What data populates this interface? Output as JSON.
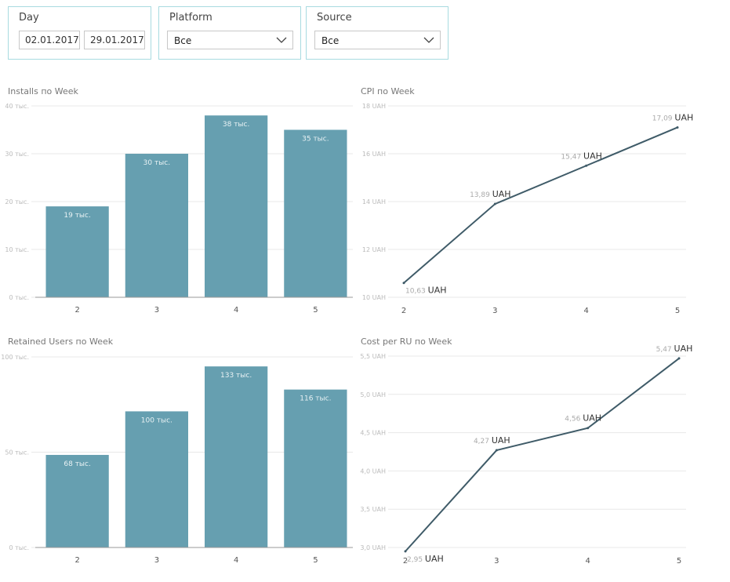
{
  "filters": {
    "day": {
      "title": "Day",
      "start": "02.01.2017",
      "end": "29.01.2017"
    },
    "platform": {
      "title": "Platform",
      "value": "Все"
    },
    "source": {
      "title": "Source",
      "value": "Все"
    }
  },
  "colors": {
    "bar": "#669fb0",
    "line": "#3f5b68",
    "grid": "#e8e8e8",
    "slicer_border": "#a8dbe0"
  },
  "chart_data": [
    {
      "id": "installs",
      "type": "bar",
      "title": "Installs по Week",
      "categories": [
        "2",
        "3",
        "4",
        "5"
      ],
      "values": [
        19,
        30,
        38,
        35
      ],
      "data_labels": [
        "19 тыс.",
        "30 тыс.",
        "38 тыс.",
        "35 тыс."
      ],
      "ylim": [
        0,
        40
      ],
      "yticks": [
        "0 тыс.",
        "10 тыс.",
        "20 тыс.",
        "30 тыс.",
        "40 тыс."
      ],
      "grid": true
    },
    {
      "id": "cpi",
      "type": "line",
      "title": "CPI по Week",
      "categories": [
        "2",
        "3",
        "4",
        "5"
      ],
      "values": [
        10.6,
        13.9,
        15.5,
        17.1
      ],
      "data_labels": [
        "10,63 UAH",
        "13,89 UAH",
        "15,47 UAH",
        "17,09 UAH"
      ],
      "ylim": [
        10,
        18
      ],
      "yticks": [
        "10 UAH",
        "12 UAH",
        "14 UAH",
        "16 UAH",
        "18 UAH"
      ],
      "grid": true
    },
    {
      "id": "retained",
      "type": "bar",
      "title": "Retained Users по Week",
      "categories": [
        "2",
        "3",
        "4",
        "5"
      ],
      "values": [
        68,
        100,
        133,
        116
      ],
      "data_labels": [
        "68 тыс.",
        "100 тыс.",
        "133 тыс.",
        "116 тыс."
      ],
      "ylim": [
        0,
        140
      ],
      "yticks": [
        "0 тыс.",
        "50 тыс.",
        "100 тыс."
      ],
      "grid": true
    },
    {
      "id": "cost_per_ru",
      "type": "line",
      "title": "Cost per RU по Week",
      "categories": [
        "2",
        "3",
        "4",
        "5"
      ],
      "values": [
        2.95,
        4.27,
        4.56,
        5.47
      ],
      "data_labels": [
        "2,95 UAH",
        "4,27 UAH",
        "4,56 UAH",
        "5,47 UAH"
      ],
      "ylim": [
        3.0,
        5.5
      ],
      "yticks": [
        "3,0 UAH",
        "3,5 UAH",
        "4,0 UAH",
        "4,5 UAH",
        "5,0 UAH",
        "5,5 UAH"
      ],
      "grid": true
    }
  ]
}
